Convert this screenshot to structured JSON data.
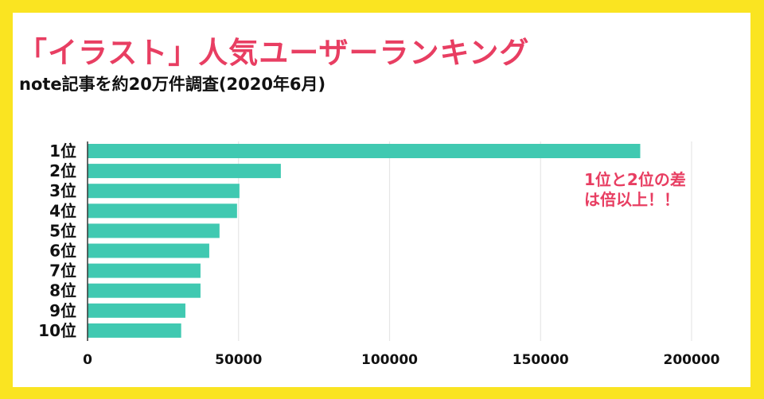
{
  "header": {
    "title": "「イラスト」人気ユーザーランキング",
    "subtitle": "note記事を約20万件調査(2020年6月)"
  },
  "annotation": {
    "line1": "1位と2位の差",
    "line2": "は倍以上！！"
  },
  "colors": {
    "background_border": "#fae421",
    "bar": "#40c9b1",
    "title": "#e83e62",
    "gridline": "#e6e6e6",
    "axis": "#333333"
  },
  "chart_data": {
    "type": "bar",
    "orientation": "horizontal",
    "title": "「イラスト」人気ユーザーランキング",
    "subtitle": "note記事を約20万件調査(2020年6月)",
    "categories": [
      "1位",
      "2位",
      "3位",
      "4位",
      "5位",
      "6位",
      "7位",
      "8位",
      "9位",
      "10位"
    ],
    "values": [
      183000,
      64000,
      50300,
      49500,
      43700,
      40300,
      37400,
      37400,
      32400,
      31000
    ],
    "xlabel": "",
    "ylabel": "",
    "xlim": [
      0,
      200000
    ],
    "xticks": [
      0,
      50000,
      100000,
      150000,
      200000
    ],
    "xtick_labels": [
      "0",
      "50000",
      "100000",
      "150000",
      "200000"
    ],
    "grid": true,
    "legend": "none",
    "annotations": [
      "1位と2位の差は倍以上！！"
    ]
  }
}
